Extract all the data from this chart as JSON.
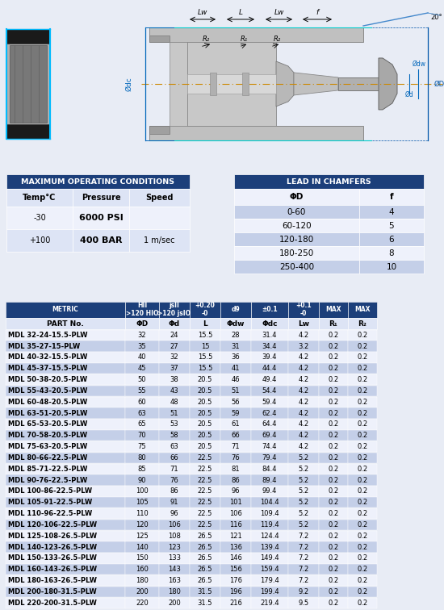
{
  "max_op_title": "MAXIMUM OPERATING CONDITIONS",
  "max_op_headers": [
    "Temp°C",
    "Pressure",
    "Speed"
  ],
  "max_op_rows": [
    [
      "-30",
      "6000 PSI",
      ""
    ],
    [
      "+100",
      "400 BAR",
      "1 m/sec"
    ]
  ],
  "lead_title": "LEAD IN CHAMFERS",
  "lead_headers": [
    "ΦD",
    "f"
  ],
  "lead_rows": [
    [
      "0-60",
      "4"
    ],
    [
      "60-120",
      "5"
    ],
    [
      "120-180",
      "6"
    ],
    [
      "180-250",
      "8"
    ],
    [
      "250-400",
      "10"
    ]
  ],
  "metric_header1": [
    "METRIC",
    "HII\n>120 HIO",
    "jsII\n>120 jsIO",
    "+0.20\n-0",
    "d9",
    "±0.1",
    "+0.1\n-0",
    "MAX",
    "MAX"
  ],
  "metric_header2": [
    "PART No.",
    "ΦD",
    "Φd",
    "L",
    "Φdw",
    "Φdc",
    "Lw",
    "R₁",
    "R₂"
  ],
  "metric_rows": [
    [
      "MDL 32-24-15.5-PLW",
      "32",
      "24",
      "15.5",
      "28",
      "31.4",
      "4.2",
      "0.2",
      "0.2"
    ],
    [
      "MDL 35-27-15-PLW",
      "35",
      "27",
      "15",
      "31",
      "34.4",
      "3.2",
      "0.2",
      "0.2"
    ],
    [
      "MDL 40-32-15.5-PLW",
      "40",
      "32",
      "15.5",
      "36",
      "39.4",
      "4.2",
      "0.2",
      "0.2"
    ],
    [
      "MDL 45-37-15.5-PLW",
      "45",
      "37",
      "15.5",
      "41",
      "44.4",
      "4.2",
      "0.2",
      "0.2"
    ],
    [
      "MDL 50-38-20.5-PLW",
      "50",
      "38",
      "20.5",
      "46",
      "49.4",
      "4.2",
      "0.2",
      "0.2"
    ],
    [
      "MDL 55-43-20.5-PLW",
      "55",
      "43",
      "20.5",
      "51",
      "54.4",
      "4.2",
      "0.2",
      "0.2"
    ],
    [
      "MDL 60-48-20.5-PLW",
      "60",
      "48",
      "20.5",
      "56",
      "59.4",
      "4.2",
      "0.2",
      "0.2"
    ],
    [
      "MDL 63-51-20.5-PLW",
      "63",
      "51",
      "20.5",
      "59",
      "62.4",
      "4.2",
      "0.2",
      "0.2"
    ],
    [
      "MDL 65-53-20.5-PLW",
      "65",
      "53",
      "20.5",
      "61",
      "64.4",
      "4.2",
      "0.2",
      "0.2"
    ],
    [
      "MDL 70-58-20.5-PLW",
      "70",
      "58",
      "20.5",
      "66",
      "69.4",
      "4.2",
      "0.2",
      "0.2"
    ],
    [
      "MDL 75-63-20.5-PLW",
      "75",
      "63",
      "20.5",
      "71",
      "74.4",
      "4.2",
      "0.2",
      "0.2"
    ],
    [
      "MDL 80-66-22.5-PLW",
      "80",
      "66",
      "22.5",
      "76",
      "79.4",
      "5.2",
      "0.2",
      "0.2"
    ],
    [
      "MDL 85-71-22.5-PLW",
      "85",
      "71",
      "22.5",
      "81",
      "84.4",
      "5.2",
      "0.2",
      "0.2"
    ],
    [
      "MDL 90-76-22.5-PLW",
      "90",
      "76",
      "22.5",
      "86",
      "89.4",
      "5.2",
      "0.2",
      "0.2"
    ],
    [
      "MDL 100-86-22.5-PLW",
      "100",
      "86",
      "22.5",
      "96",
      "99.4",
      "5.2",
      "0.2",
      "0.2"
    ],
    [
      "MDL 105-91-22.5-PLW",
      "105",
      "91",
      "22.5",
      "101",
      "104.4",
      "5.2",
      "0.2",
      "0.2"
    ],
    [
      "MDL 110-96-22.5-PLW",
      "110",
      "96",
      "22.5",
      "106",
      "109.4",
      "5.2",
      "0.2",
      "0.2"
    ],
    [
      "MDL 120-106-22.5-PLW",
      "120",
      "106",
      "22.5",
      "116",
      "119.4",
      "5.2",
      "0.2",
      "0.2"
    ],
    [
      "MDL 125-108-26.5-PLW",
      "125",
      "108",
      "26.5",
      "121",
      "124.4",
      "7.2",
      "0.2",
      "0.2"
    ],
    [
      "MDL 140-123-26.5-PLW",
      "140",
      "123",
      "26.5",
      "136",
      "139.4",
      "7.2",
      "0.2",
      "0.2"
    ],
    [
      "MDL 150-133-26.5-PLW",
      "150",
      "133",
      "26.5",
      "146",
      "149.4",
      "7.2",
      "0.2",
      "0.2"
    ],
    [
      "MDL 160-143-26.5-PLW",
      "160",
      "143",
      "26.5",
      "156",
      "159.4",
      "7.2",
      "0.2",
      "0.2"
    ],
    [
      "MDL 180-163-26.5-PLW",
      "180",
      "163",
      "26.5",
      "176",
      "179.4",
      "7.2",
      "0.2",
      "0.2"
    ],
    [
      "MDL 200-180-31.5-PLW",
      "200",
      "180",
      "31.5",
      "196",
      "199.4",
      "9.2",
      "0.2",
      "0.2"
    ],
    [
      "MDL 220-200-31.5-PLW",
      "220",
      "200",
      "31.5",
      "216",
      "219.4",
      "9.5",
      "0.2",
      "0.2"
    ]
  ],
  "header_bg": "#1c3f7a",
  "header_fg": "#ffffff",
  "row_alt1": "#dde4f5",
  "row_alt2": "#eef1fb",
  "row_highlight": "#c4cfe8",
  "bg_color": "#e8ecf5"
}
